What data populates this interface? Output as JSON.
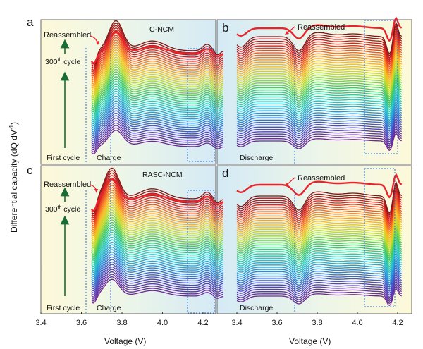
{
  "chart_data": [
    {
      "panel": "a",
      "type": "line",
      "title": "C-NCM",
      "mode": "Charge",
      "x_range": [
        3.65,
        4.3
      ],
      "annotations": {
        "reassembled": "Reassembled",
        "cycle_label_base": "300",
        "cycle_label_sup": "th",
        "cycle_label_rest": " cycle",
        "first": "First cycle"
      },
      "series_count": 46,
      "peaks": [
        3.77,
        4.22
      ],
      "highlight_box": [
        4.16,
        4.3
      ]
    },
    {
      "panel": "b",
      "type": "line",
      "title": "",
      "mode": "Discharge",
      "x_range": [
        3.4,
        4.22
      ],
      "annotations": {
        "reassembled": "Reassembled"
      },
      "series_count": 46,
      "peaks": [
        3.71,
        4.17
      ],
      "highlight_box": [
        4.06,
        4.2
      ]
    },
    {
      "panel": "c",
      "type": "line",
      "title": "RASC-NCM",
      "mode": "Charge",
      "x_range": [
        3.65,
        4.3
      ],
      "annotations": {
        "reassembled": "Reassembled",
        "cycle_label_base": "300",
        "cycle_label_sup": "th",
        "cycle_label_rest": " cycle",
        "first": "First cycle"
      },
      "series_count": 46,
      "peaks": [
        3.75,
        4.22
      ],
      "highlight_box": [
        4.16,
        4.3
      ]
    },
    {
      "panel": "d",
      "type": "line",
      "title": "",
      "mode": "Discharge",
      "x_range": [
        3.4,
        4.22
      ],
      "annotations": {
        "reassembled": "Reassembled"
      },
      "series_count": 46,
      "peaks": [
        3.71,
        4.16
      ],
      "highlight_box": [
        4.06,
        4.2
      ]
    }
  ],
  "xaxis": {
    "label": "Voltage (V)",
    "left_ticks": [
      "3.4",
      "3.6",
      "3.8",
      "4.0",
      "4.2"
    ],
    "left_tick_values": [
      3.4,
      3.6,
      3.8,
      4.0,
      4.2
    ],
    "right_ticks": [
      "3.4",
      "3.6",
      "3.8",
      "4.0",
      "4.2"
    ],
    "right_tick_values": [
      3.4,
      3.6,
      3.8,
      4.0,
      4.2
    ]
  },
  "yaxis": {
    "label_main": "Differential capacity (dQ dV",
    "label_sup": "-1",
    "label_end": ")"
  },
  "colors": {
    "reassembled": "#e8242a",
    "arrow": "#1a6b35",
    "box": "#2f6fd0",
    "bg_left": "#fdf9d9",
    "bg_right": "#d4eaf5"
  }
}
